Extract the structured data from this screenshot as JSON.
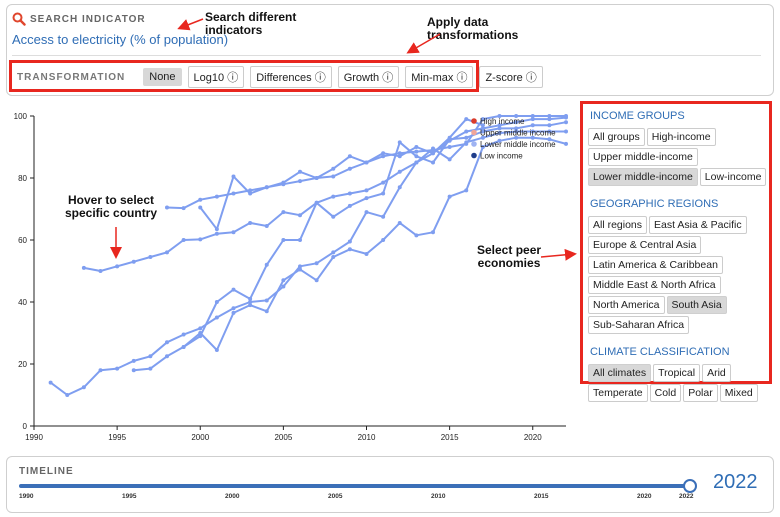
{
  "search": {
    "label": "SEARCH INDICATOR",
    "indicator": "Access to electricity (% of population)"
  },
  "annotations": {
    "search_note_1": "Search different",
    "search_note_2": "indicators",
    "transform_note_1": "Apply data",
    "transform_note_2": "transformations",
    "hover_note_1": "Hover to select",
    "hover_note_2": "specific country",
    "peer_note_1": "Select peer",
    "peer_note_2": "economies"
  },
  "transformation": {
    "label": "TRANSFORMATION",
    "options": [
      "None",
      "Log10 ⓘ",
      "Differences ⓘ",
      "Growth ⓘ",
      "Min-max ⓘ",
      "Z-score ⓘ"
    ],
    "selected": "None"
  },
  "sidebar": {
    "income_title": "INCOME GROUPS",
    "income": [
      "All groups",
      "High-income",
      "Upper middle-income",
      "Lower middle-income",
      "Low-income"
    ],
    "income_selected": "Lower middle-income",
    "regions_title": "GEOGRAPHIC REGIONS",
    "regions": [
      "All regions",
      "East Asia & Pacific",
      "Europe & Central Asia",
      "Latin America & Caribbean",
      "Middle East & North Africa",
      "North America",
      "South Asia",
      "Sub-Saharan Africa"
    ],
    "regions_selected": "South Asia",
    "climate_title": "CLIMATE CLASSIFICATION",
    "climate": [
      "All climates",
      "Tropical",
      "Arid",
      "Temperate",
      "Cold",
      "Polar",
      "Mixed"
    ],
    "climate_selected": "All climates"
  },
  "timeline": {
    "title": "TIMELINE",
    "ticks": [
      "1990",
      "1995",
      "2000",
      "2005",
      "2010",
      "2015",
      "2020",
      "2022"
    ],
    "current_year": "2022"
  },
  "colors": {
    "line": "#7f9ef0",
    "accent": "#2f6db5",
    "annotation_red": "#e8271f",
    "high_income": "#d93b2b",
    "upper_middle_income": "#f0a59b",
    "lower_middle_income": "#9fb3f2",
    "low_income": "#1f3d8a"
  },
  "chart_data": {
    "type": "line",
    "xlim": [
      1990,
      2022
    ],
    "ylim": [
      0,
      100
    ],
    "xticks": [
      "1990",
      "1995",
      "2000",
      "2005",
      "2010",
      "2015",
      "2020"
    ],
    "yticks": [
      "0",
      "20",
      "40",
      "60",
      "80",
      "100"
    ],
    "legend": [
      "High income",
      "Upper middle income",
      "Lower middle income",
      "Low income"
    ],
    "series": [
      {
        "x": [
          1993,
          1994,
          1995,
          1996,
          1997,
          1998,
          1999,
          2000,
          2001,
          2002,
          2003,
          2004,
          2005,
          2006,
          2007,
          2008,
          2009,
          2010,
          2011,
          2012,
          2013,
          2014,
          2015,
          2016,
          2017,
          2018,
          2019,
          2020,
          2021,
          2022
        ],
        "y": [
          51,
          50,
          51.5,
          53,
          54.5,
          56,
          60,
          60.2,
          62,
          62.5,
          65.5,
          64.5,
          69,
          68,
          72,
          74,
          75,
          76,
          78.5,
          82,
          85,
          88,
          92,
          95,
          96,
          97,
          98,
          99,
          99,
          99.5
        ]
      },
      {
        "x": [
          1998,
          1999,
          2000,
          2001,
          2002,
          2003,
          2004,
          2005,
          2006,
          2007,
          2008,
          2009,
          2010,
          2011,
          2012,
          2013,
          2014,
          2015,
          2016,
          2017,
          2018,
          2019,
          2020,
          2021,
          2022
        ],
        "y": [
          70.5,
          70.3,
          73,
          74,
          75,
          76,
          77,
          78,
          79,
          80,
          80.5,
          83,
          85,
          87,
          88,
          88.5,
          89,
          90,
          91,
          99,
          100,
          100,
          100,
          100,
          100
        ]
      },
      {
        "x": [
          2000,
          2001,
          2002,
          2003,
          2004,
          2005,
          2006,
          2007,
          2008,
          2009,
          2010,
          2011,
          2012,
          2013,
          2014,
          2015,
          2016,
          2017
        ],
        "y": [
          70.5,
          63.5,
          80.5,
          75,
          77,
          78.5,
          82,
          80,
          83,
          87,
          85,
          88,
          87,
          90,
          88,
          93,
          99,
          97
        ]
      },
      {
        "x": [
          1991,
          1992,
          1993,
          1994,
          1995,
          1996,
          1997,
          1998,
          1999,
          2000,
          2001,
          2002,
          2003,
          2004,
          2005,
          2006,
          2007,
          2008,
          2009,
          2010,
          2011,
          2012,
          2013,
          2014,
          2015,
          2016,
          2017,
          2018,
          2019,
          2020,
          2021,
          2022
        ],
        "y": [
          14,
          10,
          12.5,
          18,
          18.5,
          21,
          22.5,
          27,
          29.5,
          31.5,
          35,
          38,
          40,
          40.5,
          45,
          51.5,
          52.5,
          56,
          59.5,
          69,
          67.5,
          77,
          85,
          89.5,
          86,
          91.5,
          93,
          94.5,
          95,
          95,
          95,
          95
        ]
      },
      {
        "x": [
          1996,
          1997,
          1998,
          1999,
          2000,
          2001,
          2002,
          2003,
          2004,
          2005,
          2006,
          2007,
          2008,
          2009,
          2010,
          2011,
          2012,
          2013,
          2014,
          2015,
          2016,
          2017,
          2018,
          2019,
          2020,
          2021,
          2022
        ],
        "y": [
          18,
          18.5,
          22.5,
          25.5,
          29,
          40,
          44,
          41,
          52,
          60,
          60,
          72,
          67.5,
          71,
          73.5,
          75,
          91.5,
          87,
          85,
          92.5,
          93,
          95,
          96,
          96,
          97,
          97,
          98
        ]
      },
      {
        "x": [
          1999,
          2000,
          2001,
          2002,
          2003,
          2004,
          2005,
          2006,
          2007,
          2008,
          2009,
          2010,
          2011,
          2012,
          2013,
          2014,
          2015,
          2016,
          2017,
          2018,
          2019,
          2020,
          2021,
          2022
        ],
        "y": [
          25.5,
          30,
          24.5,
          36.5,
          39,
          37,
          47,
          50.5,
          47,
          54.5,
          57,
          55.5,
          60,
          65.5,
          61.5,
          62.5,
          74,
          76,
          90,
          92,
          93,
          93,
          92.5,
          91
        ]
      }
    ]
  }
}
